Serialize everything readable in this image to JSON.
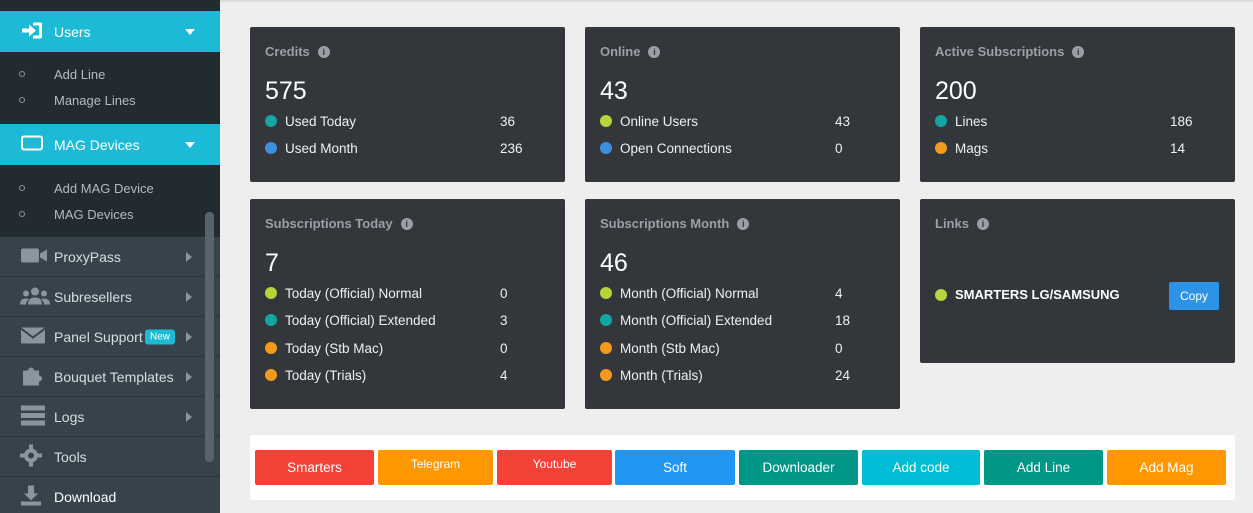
{
  "sidebar": {
    "users_label": "Users",
    "users_sub": [
      "Add Line",
      "Manage Lines"
    ],
    "mag_label": "MAG Devices",
    "mag_sub": [
      "Add MAG Device",
      "MAG Devices"
    ],
    "items": [
      {
        "label": "ProxyPass",
        "icon": "video-icon"
      },
      {
        "label": "Subresellers",
        "icon": "users-group-icon"
      },
      {
        "label": "Panel Support",
        "icon": "envelope-icon",
        "badge": "New"
      },
      {
        "label": "Bouquet Templates",
        "icon": "puzzle-icon"
      },
      {
        "label": "Logs",
        "icon": "server-icon"
      },
      {
        "label": "Tools",
        "icon": "gear-icon"
      },
      {
        "label": "Download",
        "icon": "download-icon"
      }
    ]
  },
  "cards": {
    "credits": {
      "title": "Credits",
      "value": "575",
      "rows": [
        {
          "label": "Used Today",
          "value": "36",
          "color": "#14a5a5"
        },
        {
          "label": "Used Month",
          "value": "236",
          "color": "#3d8fe0"
        }
      ]
    },
    "online": {
      "title": "Online",
      "value": "43",
      "rows": [
        {
          "label": "Online Users",
          "value": "43",
          "color": "#b9d33a"
        },
        {
          "label": "Open Connections",
          "value": "0",
          "color": "#3d8fe0"
        }
      ]
    },
    "active": {
      "title": "Active Subscriptions",
      "value": "200",
      "rows": [
        {
          "label": "Lines",
          "value": "186",
          "color": "#14a5a5"
        },
        {
          "label": "Mags",
          "value": "14",
          "color": "#f39a1d"
        }
      ]
    },
    "subs_today": {
      "title": "Subscriptions Today",
      "value": "7",
      "rows": [
        {
          "label": "Today (Official) Normal",
          "value": "0",
          "color": "#b9d33a"
        },
        {
          "label": "Today (Official) Extended",
          "value": "3",
          "color": "#14a5a5"
        },
        {
          "label": "Today (Stb Mac)",
          "value": "0",
          "color": "#f39a1d"
        },
        {
          "label": "Today (Trials)",
          "value": "4",
          "color": "#f39a1d"
        }
      ]
    },
    "subs_month": {
      "title": "Subscriptions Month",
      "value": "46",
      "rows": [
        {
          "label": "Month (Official) Normal",
          "value": "4",
          "color": "#b9d33a"
        },
        {
          "label": "Month (Official) Extended",
          "value": "18",
          "color": "#14a5a5"
        },
        {
          "label": "Month (Stb Mac)",
          "value": "0",
          "color": "#f39a1d"
        },
        {
          "label": "Month (Trials)",
          "value": "24",
          "color": "#f39a1d"
        }
      ]
    },
    "links": {
      "title": "Links",
      "link_label": "SMARTERS LG/SAMSUNG",
      "copy_label": "Copy"
    }
  },
  "quick_buttons": [
    {
      "label": "Smarters",
      "color": "#f44336"
    },
    {
      "label": "Telegram",
      "color": "#ff9800"
    },
    {
      "label": "Youtube",
      "color": "#f44336"
    },
    {
      "label": "Soft",
      "color": "#2196f3"
    },
    {
      "label": "Downloader",
      "color": "#009688"
    },
    {
      "label": "Add code",
      "color": "#00bcd4"
    },
    {
      "label": "Add Line",
      "color": "#009688"
    },
    {
      "label": "Add Mag",
      "color": "#ff9800"
    }
  ]
}
